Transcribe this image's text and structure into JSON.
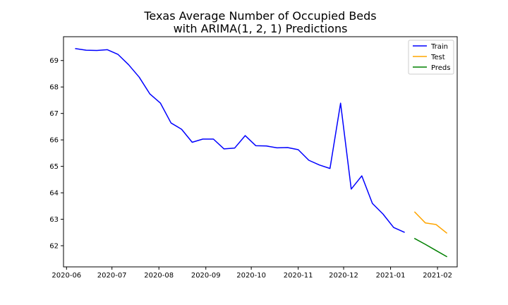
{
  "chart_data": {
    "type": "line",
    "title_lines": [
      "Texas Average Number of Occupied Beds",
      "with ARIMA(1, 2, 1) Predictions"
    ],
    "xlabel": "",
    "ylabel": "",
    "x_range": [
      "2020-05-30",
      "2021-02-14"
    ],
    "ylim": [
      61.2,
      69.9
    ],
    "grid": false,
    "legend_position": "top-right",
    "x_ticks": [
      {
        "date": "2020-06-01",
        "label": "2020-06"
      },
      {
        "date": "2020-07-01",
        "label": "2020-07"
      },
      {
        "date": "2020-08-01",
        "label": "2020-08"
      },
      {
        "date": "2020-09-01",
        "label": "2020-09"
      },
      {
        "date": "2020-10-01",
        "label": "2020-10"
      },
      {
        "date": "2020-11-01",
        "label": "2020-11"
      },
      {
        "date": "2020-12-01",
        "label": "2020-12"
      },
      {
        "date": "2021-01-01",
        "label": "2021-01"
      },
      {
        "date": "2021-02-01",
        "label": "2021-02"
      }
    ],
    "y_ticks": [
      62,
      63,
      64,
      65,
      66,
      67,
      68,
      69
    ],
    "series": [
      {
        "name": "Train",
        "color": "#0000ff",
        "x": [
          "2020-06-07",
          "2020-06-14",
          "2020-06-21",
          "2020-06-28",
          "2020-07-05",
          "2020-07-12",
          "2020-07-19",
          "2020-07-26",
          "2020-08-02",
          "2020-08-09",
          "2020-08-16",
          "2020-08-23",
          "2020-08-30",
          "2020-09-06",
          "2020-09-13",
          "2020-09-20",
          "2020-09-27",
          "2020-10-04",
          "2020-10-11",
          "2020-10-18",
          "2020-10-25",
          "2020-11-01",
          "2020-11-08",
          "2020-11-15",
          "2020-11-22",
          "2020-11-29",
          "2020-12-06",
          "2020-12-13",
          "2020-12-20",
          "2020-12-27",
          "2021-01-03",
          "2021-01-10"
        ],
        "values": [
          69.45,
          69.39,
          69.38,
          69.41,
          69.23,
          68.84,
          68.37,
          67.74,
          67.39,
          66.64,
          66.4,
          65.91,
          66.03,
          66.03,
          65.66,
          65.69,
          66.16,
          65.78,
          65.77,
          65.7,
          65.71,
          65.63,
          65.23,
          65.05,
          64.92,
          67.39,
          64.14,
          64.64,
          63.6,
          63.2,
          62.69,
          62.51
        ]
      },
      {
        "name": "Test",
        "color": "#ffa500",
        "x": [
          "2021-01-17",
          "2021-01-24",
          "2021-01-31",
          "2021-02-07"
        ],
        "values": [
          63.27,
          62.86,
          62.8,
          62.48
        ]
      },
      {
        "name": "Preds",
        "color": "#008000",
        "x": [
          "2021-01-17",
          "2021-01-24",
          "2021-01-31",
          "2021-02-07"
        ],
        "values": [
          62.27,
          62.05,
          61.82,
          61.59
        ]
      }
    ]
  }
}
